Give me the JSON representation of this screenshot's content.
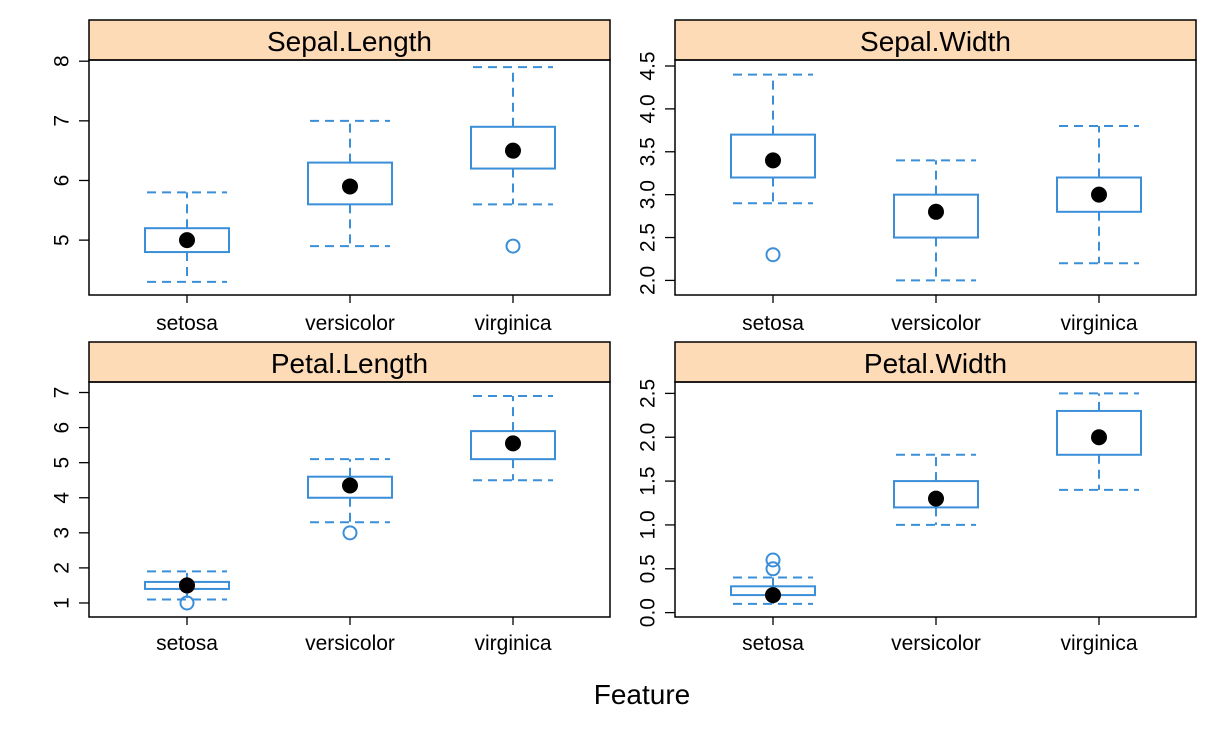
{
  "figure": {
    "xlabel": "Feature"
  },
  "colors": {
    "box": "#3b8fd9",
    "strip": "#fddbb7",
    "median_dot": "#000000",
    "axis": "#000000",
    "text": "#000000"
  },
  "chart_data": [
    {
      "type": "box",
      "title": "Sepal.Length",
      "categories": [
        "setosa",
        "versicolor",
        "virginica"
      ],
      "yticks": [
        5,
        6,
        7,
        8
      ],
      "ytick_labels": [
        "5",
        "6",
        "7",
        "8"
      ],
      "ylim": [
        4.08,
        8.02
      ],
      "boxes": [
        {
          "category": "setosa",
          "whisker_low": 4.3,
          "q1": 4.8,
          "median": 5.0,
          "q3": 5.2,
          "whisker_high": 5.8,
          "outliers": []
        },
        {
          "category": "versicolor",
          "whisker_low": 4.9,
          "q1": 5.6,
          "median": 5.9,
          "q3": 6.3,
          "whisker_high": 7.0,
          "outliers": []
        },
        {
          "category": "virginica",
          "whisker_low": 5.6,
          "q1": 6.2,
          "median": 6.5,
          "q3": 6.9,
          "whisker_high": 7.9,
          "outliers": [
            4.9
          ]
        }
      ]
    },
    {
      "type": "box",
      "title": "Sepal.Width",
      "categories": [
        "setosa",
        "versicolor",
        "virginica"
      ],
      "yticks": [
        2.0,
        2.5,
        3.0,
        3.5,
        4.0,
        4.5
      ],
      "ytick_labels": [
        "2.0",
        "2.5",
        "3.0",
        "3.5",
        "4.0",
        "4.5"
      ],
      "ylim": [
        1.83,
        4.57
      ],
      "boxes": [
        {
          "category": "setosa",
          "whisker_low": 2.9,
          "q1": 3.2,
          "median": 3.4,
          "q3": 3.7,
          "whisker_high": 4.4,
          "outliers": [
            2.3
          ]
        },
        {
          "category": "versicolor",
          "whisker_low": 2.0,
          "q1": 2.5,
          "median": 2.8,
          "q3": 3.0,
          "whisker_high": 3.4,
          "outliers": []
        },
        {
          "category": "virginica",
          "whisker_low": 2.2,
          "q1": 2.8,
          "median": 3.0,
          "q3": 3.2,
          "whisker_high": 3.8,
          "outliers": []
        }
      ]
    },
    {
      "type": "box",
      "title": "Petal.Length",
      "categories": [
        "setosa",
        "versicolor",
        "virginica"
      ],
      "yticks": [
        1,
        2,
        3,
        4,
        5,
        6,
        7
      ],
      "ytick_labels": [
        "1",
        "2",
        "3",
        "4",
        "5",
        "6",
        "7"
      ],
      "ylim": [
        0.6,
        7.3
      ],
      "boxes": [
        {
          "category": "setosa",
          "whisker_low": 1.1,
          "q1": 1.4,
          "median": 1.5,
          "q3": 1.6,
          "whisker_high": 1.9,
          "outliers": [
            1.0
          ]
        },
        {
          "category": "versicolor",
          "whisker_low": 3.3,
          "q1": 4.0,
          "median": 4.35,
          "q3": 4.6,
          "whisker_high": 5.1,
          "outliers": [
            3.0
          ]
        },
        {
          "category": "virginica",
          "whisker_low": 4.5,
          "q1": 5.1,
          "median": 5.55,
          "q3": 5.9,
          "whisker_high": 6.9,
          "outliers": []
        }
      ]
    },
    {
      "type": "box",
      "title": "Petal.Width",
      "categories": [
        "setosa",
        "versicolor",
        "virginica"
      ],
      "yticks": [
        0.0,
        0.5,
        1.0,
        1.5,
        2.0,
        2.5
      ],
      "ytick_labels": [
        "0.0",
        "0.5",
        "1.0",
        "1.5",
        "2.0",
        "2.5"
      ],
      "ylim": [
        -0.05,
        2.63
      ],
      "boxes": [
        {
          "category": "setosa",
          "whisker_low": 0.1,
          "q1": 0.2,
          "median": 0.2,
          "q3": 0.3,
          "whisker_high": 0.4,
          "outliers": [
            0.5,
            0.6
          ]
        },
        {
          "category": "versicolor",
          "whisker_low": 1.0,
          "q1": 1.2,
          "median": 1.3,
          "q3": 1.5,
          "whisker_high": 1.8,
          "outliers": []
        },
        {
          "category": "virginica",
          "whisker_low": 1.4,
          "q1": 1.8,
          "median": 2.0,
          "q3": 2.3,
          "whisker_high": 2.5,
          "outliers": []
        }
      ]
    }
  ]
}
